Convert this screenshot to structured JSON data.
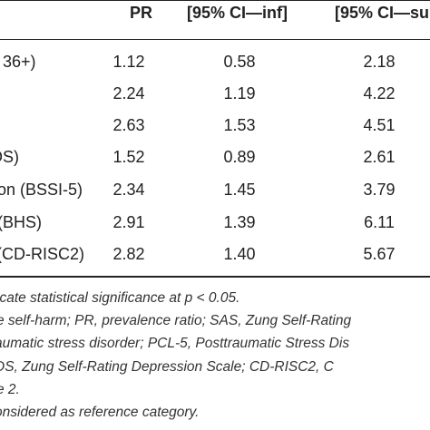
{
  "table": {
    "headers": {
      "pr": "PR",
      "ci_inf": "[95% CI—inf]",
      "ci_sup": "[95% CI—su"
    },
    "rows": [
      {
        "label": ". 36+)",
        "pr": "1.12",
        "ci_inf": "0.58",
        "ci_sup": "2.18"
      },
      {
        "label": "",
        "pr": "2.24",
        "ci_inf": "1.19",
        "ci_sup": "4.22"
      },
      {
        "label": "",
        "pr": "2.63",
        "ci_inf": "1.53",
        "ci_sup": "4.51"
      },
      {
        "label": "DS)",
        "pr": "1.52",
        "ci_inf": "0.89",
        "ci_sup": "2.61"
      },
      {
        "label": "on (BSSI-5)",
        "pr": "2.34",
        "ci_inf": "1.45",
        "ci_sup": "3.79"
      },
      {
        "label": "(BHS)",
        "pr": "2.91",
        "ci_inf": "1.39",
        "ci_sup": "6.11"
      },
      {
        "label": "(CD-RISC2)",
        "pr": "2.82",
        "ci_inf": "1.40",
        "ci_sup": "5.67"
      }
    ]
  },
  "notes": [
    {
      "text": "icate statistical significance at p < 0.05."
    },
    {
      "text": "e self-harm; PR, prevalence ratio; SAS, Zung Self-Rating"
    },
    {
      "text": "aumatic stress disorder; PCL-5, Posttraumatic Stress Dis"
    },
    {
      "text": "DS, Zung Self-Rating Depression Scale; CD-RISC2, C"
    },
    {
      "text": "e 2."
    },
    {
      "text": "onsidered as reference category."
    }
  ]
}
